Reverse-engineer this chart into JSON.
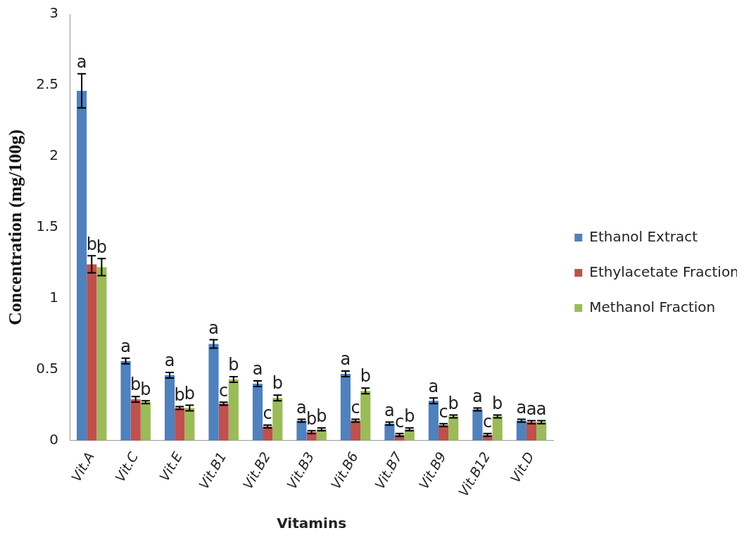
{
  "chart_data": {
    "type": "bar",
    "xlabel": "Vitamins",
    "ylabel": "Concentration (mg/100g)",
    "categories": [
      "Vit.A",
      "Vit.C",
      "Vit.E",
      "Vit.B1",
      "Vit.B2",
      "Vit.B3",
      "Vit.B6",
      "Vit.B7",
      "Vit.B9",
      "Vit.B12",
      "Vit.D"
    ],
    "series": [
      {
        "name": "Ethanol Extract",
        "color": "#4f81bd",
        "values": [
          2.46,
          0.56,
          0.46,
          0.68,
          0.4,
          0.14,
          0.47,
          0.12,
          0.28,
          0.22,
          0.14
        ],
        "errors": [
          0.12,
          0.02,
          0.02,
          0.03,
          0.02,
          0.01,
          0.02,
          0.01,
          0.02,
          0.01,
          0.01
        ],
        "value_labels": [
          "a",
          "a",
          "a",
          "a",
          "a",
          "a",
          "a",
          "a",
          "a",
          "a",
          "a"
        ]
      },
      {
        "name": "Ethylacetate Fraction",
        "color": "#c0504d",
        "values": [
          1.24,
          0.29,
          0.23,
          0.26,
          0.1,
          0.06,
          0.14,
          0.04,
          0.11,
          0.04,
          0.13
        ],
        "errors": [
          0.06,
          0.02,
          0.01,
          0.01,
          0.01,
          0.01,
          0.01,
          0.01,
          0.01,
          0.01,
          0.01
        ],
        "value_labels": [
          "b",
          "b",
          "b",
          "c",
          "c",
          "b",
          "c",
          "c",
          "c",
          "c",
          "a"
        ]
      },
      {
        "name": "Methanol Fraction",
        "color": "#9bbb59",
        "values": [
          1.22,
          0.27,
          0.23,
          0.43,
          0.3,
          0.08,
          0.35,
          0.08,
          0.17,
          0.17,
          0.13
        ],
        "errors": [
          0.06,
          0.01,
          0.02,
          0.02,
          0.02,
          0.01,
          0.02,
          0.01,
          0.01,
          0.01,
          0.01
        ],
        "value_labels": [
          "b",
          "b",
          "b",
          "b",
          "b",
          "b",
          "b",
          "b",
          "b",
          "b",
          "a"
        ]
      }
    ],
    "ylim": [
      0,
      3
    ],
    "yticks": [
      0,
      0.5,
      1,
      1.5,
      2,
      2.5,
      3
    ],
    "grid": false,
    "legend": "right"
  }
}
